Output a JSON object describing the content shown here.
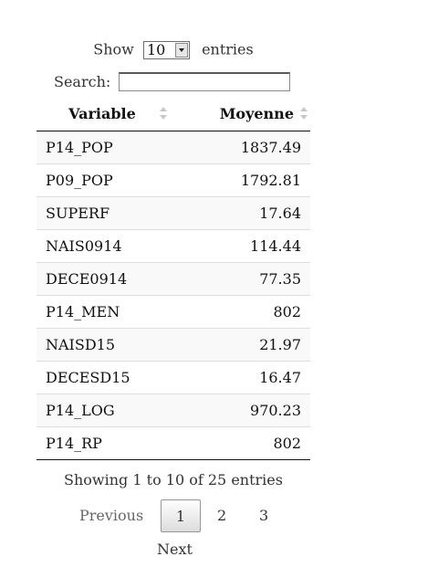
{
  "length": {
    "show_label": "Show",
    "selected": "10",
    "entries_label": "entries"
  },
  "search": {
    "label": "Search:",
    "value": ""
  },
  "table": {
    "headers": [
      "Variable",
      "Moyenne"
    ],
    "rows": [
      [
        "P14_POP",
        "1837.49"
      ],
      [
        "P09_POP",
        "1792.81"
      ],
      [
        "SUPERF",
        "17.64"
      ],
      [
        "NAIS0914",
        "114.44"
      ],
      [
        "DECE0914",
        "77.35"
      ],
      [
        "P14_MEN",
        "802"
      ],
      [
        "NAISD15",
        "21.97"
      ],
      [
        "DECESD15",
        "16.47"
      ],
      [
        "P14_LOG",
        "970.23"
      ],
      [
        "P14_RP",
        "802"
      ]
    ]
  },
  "info": "Showing 1 to 10 of 25 entries",
  "pagination": {
    "previous": "Previous",
    "pages": [
      "1",
      "2",
      "3"
    ],
    "current": "1",
    "next": "Next"
  }
}
